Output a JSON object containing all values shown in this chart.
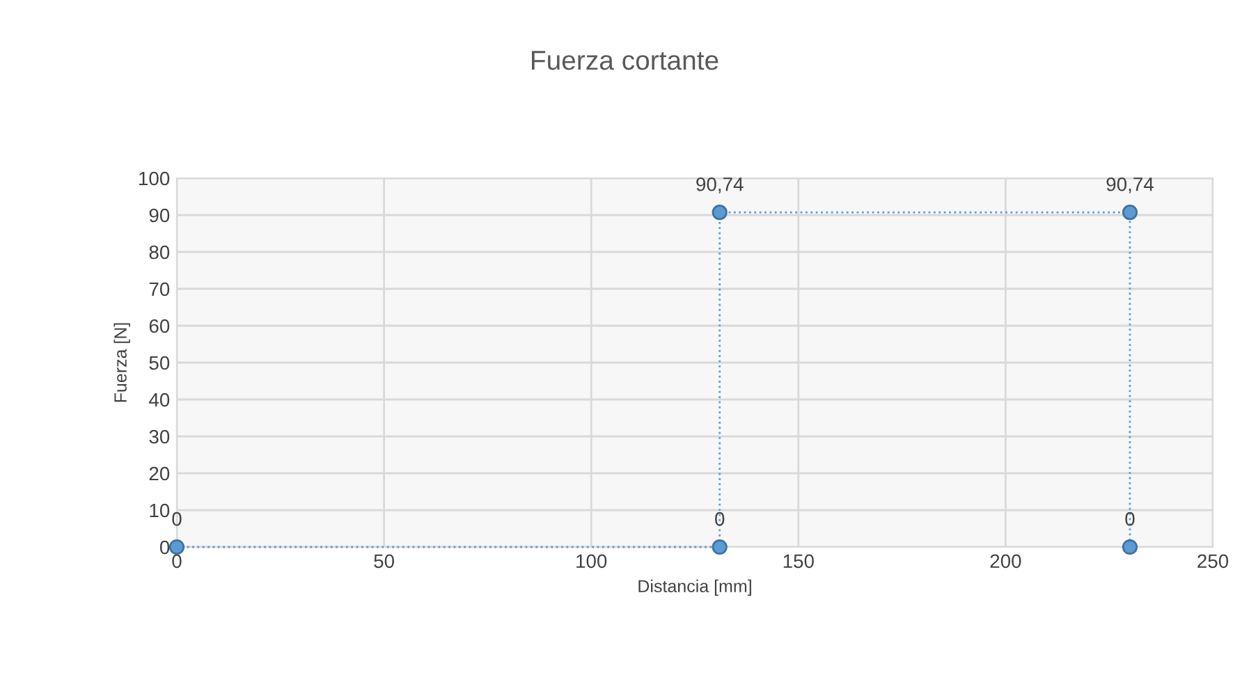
{
  "chart_data": {
    "type": "line",
    "title": "Fuerza cortante",
    "xlabel": "Distancia [mm]",
    "ylabel": "Fuerza [N]",
    "series": [
      {
        "color": "#5b9bd5",
        "x": [
          0,
          131,
          131,
          230,
          230
        ],
        "values": [
          0,
          0,
          90.74,
          90.74,
          0
        ],
        "value_labels": [
          "0",
          "0",
          "90,74",
          "90,74",
          "0"
        ]
      }
    ],
    "xlim": [
      0,
      250
    ],
    "xticks": [
      0,
      50,
      100,
      150,
      200,
      250
    ],
    "ylim": [
      0,
      100
    ],
    "yticks": [
      0,
      10,
      20,
      30,
      40,
      50,
      60,
      70,
      80,
      90,
      100
    ],
    "grid": true,
    "marker": "circle",
    "line_style": "dotted"
  }
}
